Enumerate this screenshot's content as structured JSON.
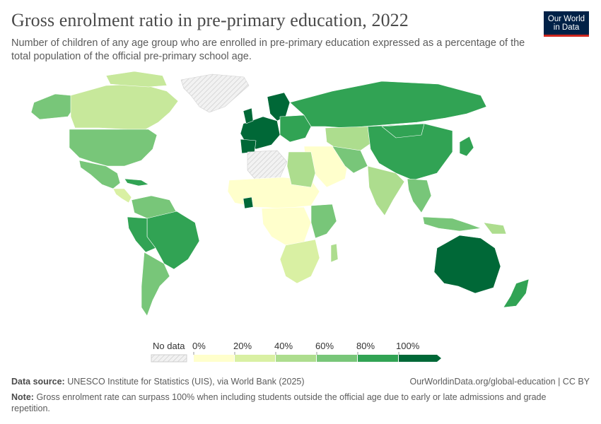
{
  "header": {
    "title": "Gross enrolment ratio in pre-primary education, 2022",
    "subtitle": "Number of children of any age group who are enrolled in pre-primary education expressed as a percentage of the total population of the official pre-primary school age."
  },
  "logo": {
    "line1": "Our World",
    "line2": "in Data",
    "bg": "#002147",
    "accent": "#ce261e"
  },
  "legend": {
    "no_data_label": "No data",
    "ticks": [
      "0%",
      "20%",
      "40%",
      "60%",
      "80%",
      "100%"
    ],
    "colors": [
      "#ffffcc",
      "#d9f0a3",
      "#addd8e",
      "#78c679",
      "#31a354",
      "#006837"
    ]
  },
  "map_regions": [
    {
      "name": "Greenland",
      "status": "no data"
    },
    {
      "name": "Western Sahara / Libya / Egypt region",
      "status": "no data"
    },
    {
      "name": "Australia",
      "bucket": 5
    },
    {
      "name": "Europe (Western)",
      "bucket": 5
    },
    {
      "name": "Russia",
      "bucket": 4
    },
    {
      "name": "Brazil",
      "bucket": 4
    },
    {
      "name": "United States",
      "bucket": 3
    },
    {
      "name": "Canada",
      "bucket": 2
    },
    {
      "name": "China",
      "bucket": 4
    },
    {
      "name": "India",
      "bucket": 2
    },
    {
      "name": "Sub-Saharan Africa",
      "bucket": 0
    }
  ],
  "footer": {
    "source_label": "Data source:",
    "source_text": "UNESCO Institute for Statistics (UIS), via World Bank (2025)",
    "url_text": "OurWorldinData.org/global-education | CC BY",
    "note_label": "Note:",
    "note_text": "Gross enrolment rate can surpass 100% when including students outside the official age due to early or late admissions and grade repetition."
  }
}
